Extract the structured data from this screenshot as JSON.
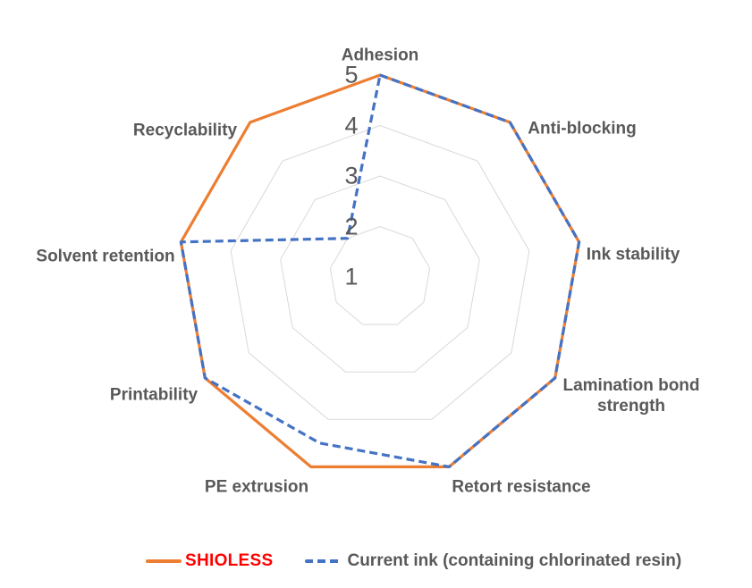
{
  "chart_data": {
    "type": "radar",
    "title": "",
    "categories": [
      "Adhesion",
      "Anti-blocking",
      "Ink stability",
      "Lamination bond strength",
      "Retort resistance",
      "PE extrusion",
      "Printability",
      "Solvent retention",
      "Recyclability"
    ],
    "series": [
      {
        "name": "SHIOLESS",
        "color": "#ED7D31",
        "line_style": "solid",
        "values": [
          5,
          5,
          5,
          5,
          5,
          5,
          5,
          5,
          5
        ]
      },
      {
        "name": "Current ink (containing chlorinated resin)",
        "color": "#4472C4",
        "line_style": "dashed",
        "values": [
          5,
          5,
          5,
          5,
          5,
          4.5,
          5,
          5,
          2
        ]
      }
    ],
    "axis": {
      "min": 1,
      "max": 5,
      "tick_labels": [
        "5",
        "4",
        "3",
        "2",
        "1"
      ],
      "tick_values": [
        5,
        4,
        3,
        2,
        1
      ],
      "gridline_values": [
        2,
        3,
        4,
        5
      ],
      "gridline_color": "#D9D9D9"
    },
    "legend_position": "bottom"
  },
  "legend": {
    "items": [
      {
        "label": "SHIOLESS",
        "swatch_color": "#ED7D31",
        "label_color": "#FF0000",
        "style": "solid"
      },
      {
        "label": "Current ink (containing chlorinated resin)",
        "swatch_color": "#4472C4",
        "label_color": "#595959",
        "style": "dashed"
      }
    ]
  },
  "colors": {
    "background": "#FFFFFF",
    "category_label": "#595959",
    "tick_label": "#595959"
  }
}
